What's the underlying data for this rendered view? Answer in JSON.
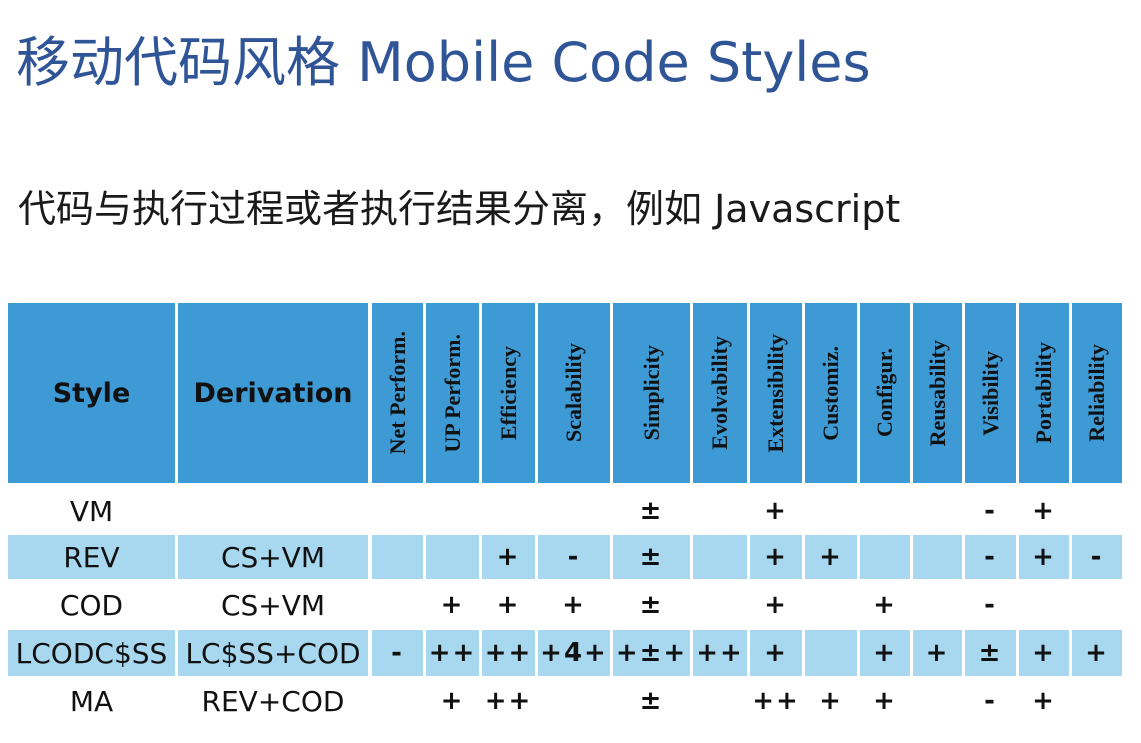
{
  "header": {
    "title": "移动代码风格 Mobile Code Styles",
    "subtitle": "代码与执行过程或者执行结果分离，例如 Javascript"
  },
  "table": {
    "columns": [
      "Style",
      "Derivation",
      "Net Perform.",
      "UP Perform.",
      "Efficiency",
      "Scalability",
      "Simplicity",
      "Evolvability",
      "Extensibility",
      "Customiz.",
      "Configur.",
      "Reusability",
      "Visibility",
      "Portability",
      "Reliability"
    ],
    "rows": [
      [
        "VM",
        null,
        null,
        null,
        null,
        null,
        "±",
        null,
        "+",
        null,
        null,
        null,
        "-",
        "+",
        null
      ],
      [
        "REV",
        "CS+VM",
        null,
        null,
        "+",
        "-",
        "±",
        null,
        "+",
        "+",
        null,
        null,
        "-",
        "+",
        "-"
      ],
      [
        "COD",
        "CS+VM",
        null,
        "+",
        "+",
        "+",
        "±",
        null,
        "+",
        null,
        "+",
        null,
        "-",
        null,
        null
      ],
      [
        "LCODC$SS",
        "LC$SS+COD",
        "-",
        "++",
        "++",
        "+4+",
        "+±+",
        "++",
        "+",
        null,
        "+",
        "+",
        "±",
        "+",
        "+"
      ],
      [
        "MA",
        "REV+COD",
        null,
        "+",
        "++",
        null,
        "±",
        null,
        "++",
        "+",
        "+",
        null,
        "-",
        "+",
        null
      ]
    ]
  }
}
